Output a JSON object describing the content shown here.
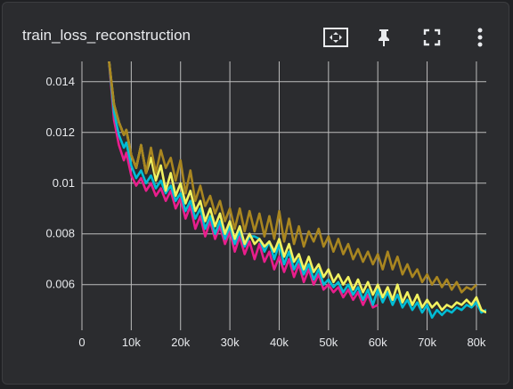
{
  "card": {
    "title": "train_loss_reconstruction",
    "toolbar": [
      {
        "name": "fit-domain-icon"
      },
      {
        "name": "pin-icon"
      },
      {
        "name": "fullscreen-icon"
      },
      {
        "name": "more-vert-icon"
      }
    ]
  },
  "chart_data": {
    "type": "line",
    "title": "train_loss_reconstruction",
    "xlabel": "",
    "ylabel": "",
    "xlim": [
      0,
      82000
    ],
    "ylim": [
      0.0042,
      0.0148
    ],
    "x_ticks": [
      "0",
      "10k",
      "20k",
      "30k",
      "40k",
      "50k",
      "60k",
      "70k",
      "80k"
    ],
    "x_tick_values": [
      0,
      10000,
      20000,
      30000,
      40000,
      50000,
      60000,
      70000,
      80000
    ],
    "y_ticks": [
      "0.006",
      "0.008",
      "0.01",
      "0.012",
      "0.014"
    ],
    "y_tick_values": [
      0.006,
      0.008,
      0.01,
      0.012,
      0.014
    ],
    "grid": true,
    "series": [
      {
        "color": "#e91e8c",
        "x": [
          5500,
          6500,
          7500,
          8500,
          9000,
          10000,
          11000,
          12000,
          13000,
          14000,
          15000,
          16000,
          17000,
          18000,
          19000,
          20000,
          21000,
          22000,
          23000,
          24000,
          25000,
          26000,
          27000,
          28000,
          29000,
          30000,
          31000,
          32000,
          33000,
          34000,
          35000,
          36000,
          37000,
          38000,
          39000,
          40000,
          41000,
          42000,
          43000,
          44000,
          45000,
          46000,
          47000,
          48000,
          49000,
          50000,
          51000,
          52000,
          53000,
          54000,
          55000,
          56000,
          57000,
          58000,
          59000,
          60000
        ],
        "y": [
          0.0148,
          0.0125,
          0.0115,
          0.0109,
          0.0112,
          0.0103,
          0.0099,
          0.0102,
          0.0097,
          0.01,
          0.0095,
          0.0098,
          0.0093,
          0.0097,
          0.009,
          0.0094,
          0.0086,
          0.0091,
          0.0082,
          0.0087,
          0.0079,
          0.0085,
          0.0078,
          0.0083,
          0.0076,
          0.0081,
          0.0073,
          0.0079,
          0.0072,
          0.0077,
          0.007,
          0.0076,
          0.0069,
          0.0073,
          0.0066,
          0.0071,
          0.0065,
          0.007,
          0.0063,
          0.0068,
          0.0061,
          0.0066,
          0.006,
          0.0064,
          0.0058,
          0.006,
          0.0057,
          0.0059,
          0.0055,
          0.0058,
          0.0054,
          0.0057,
          0.0052,
          0.0056,
          0.0051,
          0.0052
        ]
      },
      {
        "color": "#00bcd4",
        "x": [
          5500,
          6500,
          7500,
          8500,
          9000,
          10000,
          11000,
          12000,
          13000,
          14000,
          15000,
          16000,
          17000,
          18000,
          19000,
          20000,
          21000,
          22000,
          23000,
          24000,
          25000,
          26000,
          27000,
          28000,
          29000,
          30000,
          31000,
          32000,
          33000,
          34000,
          35000,
          36000,
          37000,
          38000,
          39000,
          40000,
          41000,
          42000,
          43000,
          44000,
          45000,
          46000,
          47000,
          48000,
          49000,
          50000,
          51000,
          52000,
          53000,
          54000,
          55000,
          56000,
          57000,
          58000,
          59000,
          60000,
          61000,
          62000,
          63000,
          64000,
          65000,
          66000,
          67000,
          68000,
          69000,
          70000,
          71000,
          72000,
          73000,
          74000,
          75000,
          76000,
          77000,
          78000,
          79000,
          80000,
          81000,
          82000
        ],
        "y": [
          0.0148,
          0.0128,
          0.0119,
          0.0114,
          0.0116,
          0.0107,
          0.0102,
          0.0105,
          0.01,
          0.0103,
          0.0098,
          0.0101,
          0.0096,
          0.0099,
          0.0093,
          0.0096,
          0.0089,
          0.0093,
          0.0086,
          0.009,
          0.0082,
          0.0087,
          0.008,
          0.0085,
          0.0078,
          0.0083,
          0.0076,
          0.0081,
          0.0075,
          0.0079,
          0.0079,
          0.0078,
          0.0073,
          0.0077,
          0.007,
          0.0076,
          0.0068,
          0.0073,
          0.0066,
          0.007,
          0.0064,
          0.0068,
          0.0062,
          0.0066,
          0.006,
          0.0062,
          0.0059,
          0.0061,
          0.0057,
          0.006,
          0.0056,
          0.0059,
          0.0054,
          0.0058,
          0.0052,
          0.0058,
          0.0053,
          0.0057,
          0.0052,
          0.0056,
          0.0051,
          0.0054,
          0.005,
          0.0053,
          0.0049,
          0.0052,
          0.0047,
          0.005,
          0.0048,
          0.005,
          0.0049,
          0.0051,
          0.005,
          0.0052,
          0.0051,
          0.0053,
          0.0049,
          0.005
        ]
      },
      {
        "color": "#f2f260",
        "x": [
          5500,
          6500,
          7500,
          8500,
          9000,
          10000,
          11000,
          12000,
          13000,
          14000,
          15000,
          16000,
          17000,
          18000,
          19000,
          20000,
          21000,
          22000,
          23000,
          24000,
          25000,
          26000,
          27000,
          28000,
          29000,
          30000,
          31000,
          32000,
          33000,
          34000,
          35000,
          36000,
          37000,
          38000,
          39000,
          40000,
          41000,
          42000,
          43000,
          44000,
          45000,
          46000,
          47000,
          48000,
          49000,
          50000,
          51000,
          52000,
          53000,
          54000,
          55000,
          56000,
          57000,
          58000,
          59000,
          60000,
          61000,
          62000,
          63000,
          64000,
          65000,
          66000,
          67000,
          68000,
          69000,
          70000,
          71000,
          72000,
          73000,
          74000,
          75000,
          76000,
          77000,
          78000,
          79000,
          80000,
          81000,
          82000
        ],
        "y": [
          0.0148,
          0.0131,
          0.0124,
          0.0119,
          0.0121,
          0.0111,
          0.0106,
          0.0115,
          0.0104,
          0.011,
          0.0101,
          0.0107,
          0.0097,
          0.0104,
          0.0095,
          0.01,
          0.0092,
          0.0097,
          0.0089,
          0.0093,
          0.0085,
          0.009,
          0.0083,
          0.0088,
          0.008,
          0.0085,
          0.0078,
          0.0083,
          0.0076,
          0.008,
          0.0076,
          0.0078,
          0.0075,
          0.0077,
          0.0073,
          0.0078,
          0.0071,
          0.0076,
          0.0069,
          0.0072,
          0.0066,
          0.0071,
          0.0065,
          0.0068,
          0.0063,
          0.0066,
          0.0061,
          0.0064,
          0.006,
          0.0063,
          0.0058,
          0.0062,
          0.0057,
          0.0061,
          0.0056,
          0.006,
          0.0055,
          0.0059,
          0.0054,
          0.006,
          0.0053,
          0.0057,
          0.0052,
          0.0056,
          0.0051,
          0.0054,
          0.0051,
          0.0053,
          0.005,
          0.0052,
          0.0051,
          0.0053,
          0.0052,
          0.0054,
          0.0052,
          0.0055,
          0.005,
          0.0049
        ]
      },
      {
        "color": "#a98620",
        "x": [
          5500,
          6500,
          7500,
          8500,
          9000,
          10000,
          11000,
          12000,
          13000,
          14000,
          15000,
          16000,
          17000,
          18000,
          19000,
          20000,
          21000,
          22000,
          23000,
          24000,
          25000,
          26000,
          27000,
          28000,
          29000,
          30000,
          31000,
          32000,
          33000,
          34000,
          35000,
          36000,
          37000,
          38000,
          39000,
          40000,
          41000,
          42000,
          43000,
          44000,
          45000,
          46000,
          47000,
          48000,
          49000,
          50000,
          51000,
          52000,
          53000,
          54000,
          55000,
          56000,
          57000,
          58000,
          59000,
          60000,
          61000,
          62000,
          63000,
          64000,
          65000,
          66000,
          67000,
          68000,
          69000,
          70000,
          71000,
          72000,
          73000,
          74000,
          75000,
          76000,
          77000,
          78000,
          79000,
          80000
        ],
        "y": [
          0.0148,
          0.0131,
          0.0124,
          0.0119,
          0.0121,
          0.0111,
          0.0106,
          0.0115,
          0.0104,
          0.0114,
          0.0104,
          0.0113,
          0.0106,
          0.011,
          0.0101,
          0.0109,
          0.0096,
          0.0105,
          0.0093,
          0.0099,
          0.0091,
          0.0095,
          0.0088,
          0.0093,
          0.0085,
          0.009,
          0.0082,
          0.009,
          0.0081,
          0.0089,
          0.0081,
          0.0088,
          0.0079,
          0.0087,
          0.0078,
          0.0089,
          0.0077,
          0.0086,
          0.0076,
          0.0083,
          0.0075,
          0.0081,
          0.0077,
          0.0082,
          0.0075,
          0.0079,
          0.0073,
          0.0078,
          0.0072,
          0.0076,
          0.007,
          0.0074,
          0.0069,
          0.0073,
          0.0068,
          0.0072,
          0.0066,
          0.0073,
          0.0066,
          0.0071,
          0.0064,
          0.0068,
          0.0063,
          0.0066,
          0.0061,
          0.0064,
          0.006,
          0.0063,
          0.0059,
          0.0062,
          0.0058,
          0.0061,
          0.0057,
          0.0059,
          0.0058,
          0.006
        ]
      }
    ]
  }
}
